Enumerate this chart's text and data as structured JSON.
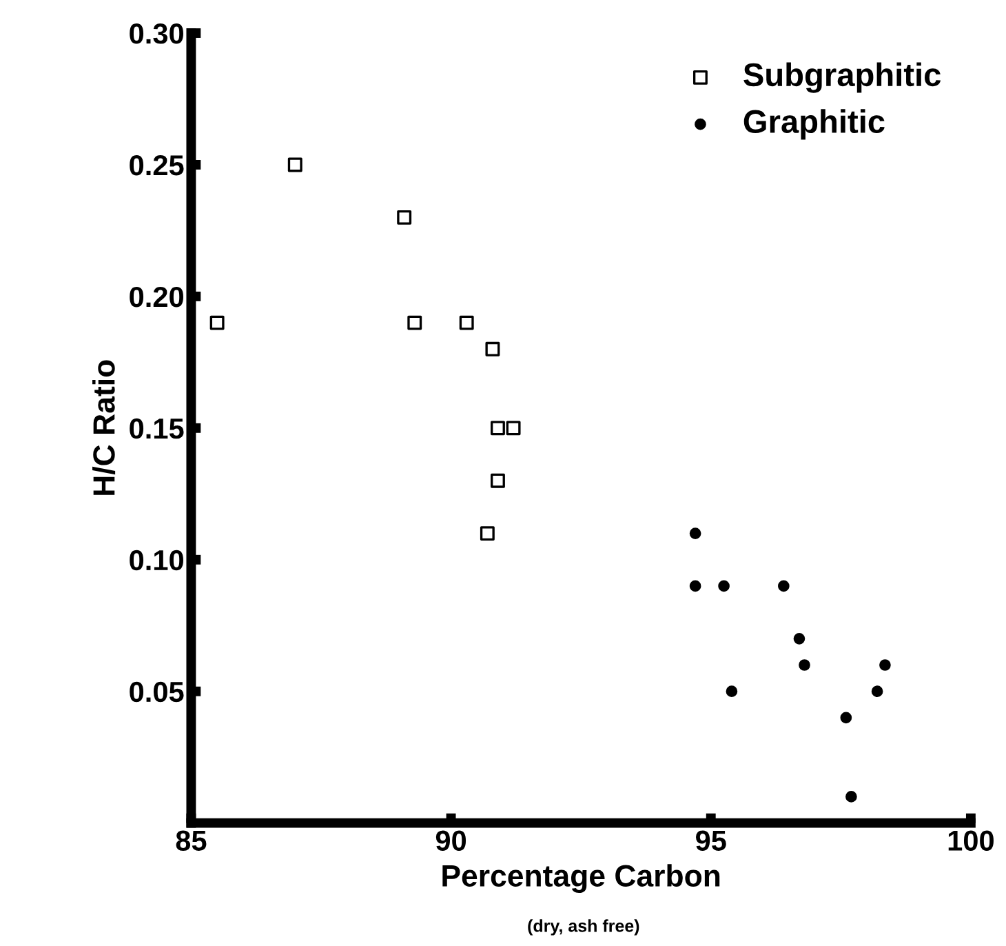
{
  "chart_data": {
    "type": "scatter",
    "xlabel": "Percentage Carbon",
    "ylabel": "H/C Ratio",
    "annotations": [
      "(dry, ash free)"
    ],
    "xlim": [
      85,
      100
    ],
    "xticks": [
      85,
      90,
      95,
      100
    ],
    "ylim": [
      0,
      0.3
    ],
    "yticks": [
      0.05,
      {
        "value": 0.1,
        "label": "0.10"
      },
      0.15,
      {
        "value": 0.2,
        "label": "0.20"
      },
      0.25,
      {
        "value": 0.3,
        "label": "0.30"
      }
    ],
    "grid": false,
    "legend": "top right",
    "series": [
      {
        "name": "Subgraphitic",
        "color": "#000000",
        "marker": "square",
        "x": [
          85.5,
          87.0,
          89.1,
          89.3,
          90.3,
          90.8,
          90.9,
          91.2,
          90.9,
          90.7
        ],
        "values": [
          0.19,
          0.25,
          0.23,
          0.19,
          0.19,
          0.18,
          0.15,
          0.15,
          0.13,
          0.11
        ]
      },
      {
        "name": "Graphitic",
        "color": "#000000",
        "marker": "circle",
        "x": [
          94.7,
          94.7,
          95.25,
          95.4,
          96.4,
          96.7,
          96.8,
          97.6,
          98.2,
          98.35,
          97.7
        ],
        "values": [
          0.11,
          0.09,
          0.09,
          0.05,
          0.09,
          0.07,
          0.06,
          0.04,
          0.05,
          0.06,
          0.01
        ]
      }
    ]
  }
}
